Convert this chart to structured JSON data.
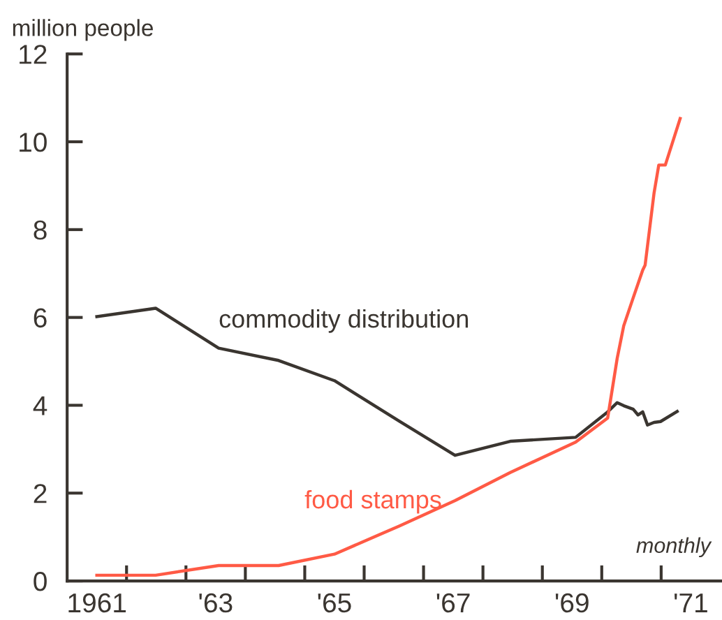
{
  "chart_data": {
    "type": "line",
    "ylabel": "million people",
    "annotations": [
      "monthly"
    ],
    "series": [
      {
        "name": "commodity distribution",
        "color": "#3a3530",
        "x": [
          1961.0,
          1961.99,
          1963.05,
          1964.06,
          1965.0,
          1966.09,
          1967.03,
          1967.96,
          1969.06,
          1969.6,
          1969.76,
          1969.87,
          1970.03,
          1970.11,
          1970.19,
          1970.27,
          1970.38,
          1970.49,
          1970.77
        ],
        "values": [
          6.02,
          6.21,
          5.3,
          5.02,
          4.56,
          3.64,
          2.86,
          3.18,
          3.27,
          3.85,
          4.06,
          3.99,
          3.91,
          3.78,
          3.85,
          3.55,
          3.61,
          3.63,
          3.86
        ]
      },
      {
        "name": "food stamps",
        "color": "#ff5a45",
        "x": [
          1961.0,
          1961.99,
          1963.05,
          1964.06,
          1965.0,
          1966.09,
          1967.03,
          1967.96,
          1969.06,
          1969.6,
          1969.76,
          1969.87,
          1970.03,
          1970.19,
          1970.23,
          1970.38,
          1970.46,
          1970.57,
          1970.82
        ],
        "values": [
          0.13,
          0.13,
          0.35,
          0.35,
          0.61,
          1.25,
          1.83,
          2.47,
          3.16,
          3.71,
          5.07,
          5.81,
          6.45,
          7.08,
          7.19,
          8.83,
          9.47,
          9.47,
          10.53
        ]
      }
    ],
    "xlim": [
      1960.5,
      1971.5
    ],
    "xticks": [
      1961,
      {
        "value": 1961.5,
        "label": null
      },
      {
        "value": 1962.5,
        "label": null
      },
      {
        "value": 1963,
        "label": "'63"
      },
      {
        "value": 1963.5,
        "label": null
      },
      {
        "value": 1964.5,
        "label": null
      },
      {
        "value": 1965,
        "label": "'65"
      },
      {
        "value": 1965.5,
        "label": null
      },
      {
        "value": 1966.5,
        "label": null
      },
      {
        "value": 1967,
        "label": "'67"
      },
      {
        "value": 1967.5,
        "label": null
      },
      {
        "value": 1968.5,
        "label": null
      },
      {
        "value": 1969,
        "label": "'69"
      },
      {
        "value": 1969.5,
        "label": null
      },
      {
        "value": 1970.5,
        "label": null
      },
      {
        "value": 1971,
        "label": "'71"
      }
    ],
    "ylim": [
      0,
      12
    ],
    "yticks": [
      0,
      2,
      4,
      6,
      8,
      10,
      12
    ],
    "grid": false,
    "legend": false,
    "marker": "none",
    "line_style": "solid"
  }
}
